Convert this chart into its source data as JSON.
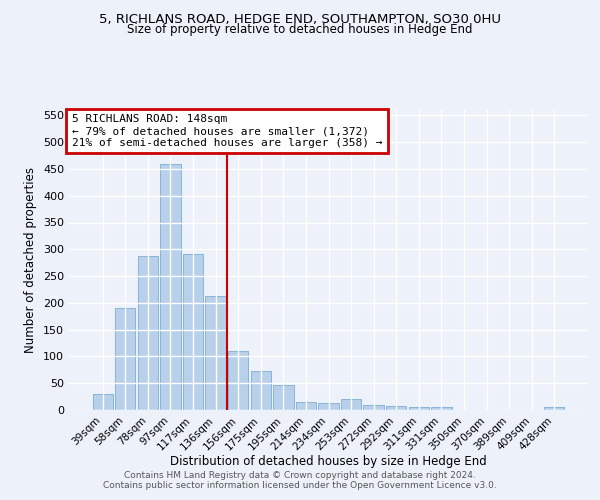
{
  "title": "5, RICHLANS ROAD, HEDGE END, SOUTHAMPTON, SO30 0HU",
  "subtitle": "Size of property relative to detached houses in Hedge End",
  "xlabel": "Distribution of detached houses by size in Hedge End",
  "ylabel": "Number of detached properties",
  "categories": [
    "39sqm",
    "58sqm",
    "78sqm",
    "97sqm",
    "117sqm",
    "136sqm",
    "156sqm",
    "175sqm",
    "195sqm",
    "214sqm",
    "234sqm",
    "253sqm",
    "272sqm",
    "292sqm",
    "311sqm",
    "331sqm",
    "350sqm",
    "370sqm",
    "389sqm",
    "409sqm",
    "428sqm"
  ],
  "values": [
    30,
    191,
    287,
    459,
    291,
    213,
    110,
    72,
    47,
    15,
    13,
    20,
    10,
    8,
    5,
    5,
    0,
    0,
    0,
    0,
    5
  ],
  "bar_color": "#b8d0ea",
  "bar_edge_color": "#7aadd4",
  "vline_x": 5.5,
  "vline_color": "#cc0000",
  "annotation_title": "5 RICHLANS ROAD: 148sqm",
  "annotation_line1": "← 79% of detached houses are smaller (1,372)",
  "annotation_line2": "21% of semi-detached houses are larger (358) →",
  "annotation_box_color": "#cc0000",
  "ylim": [
    0,
    560
  ],
  "yticks": [
    0,
    50,
    100,
    150,
    200,
    250,
    300,
    350,
    400,
    450,
    500,
    550
  ],
  "footer_line1": "Contains HM Land Registry data © Crown copyright and database right 2024.",
  "footer_line2": "Contains public sector information licensed under the Open Government Licence v3.0.",
  "bg_color": "#edf2fa",
  "grid_color": "#ffffff"
}
